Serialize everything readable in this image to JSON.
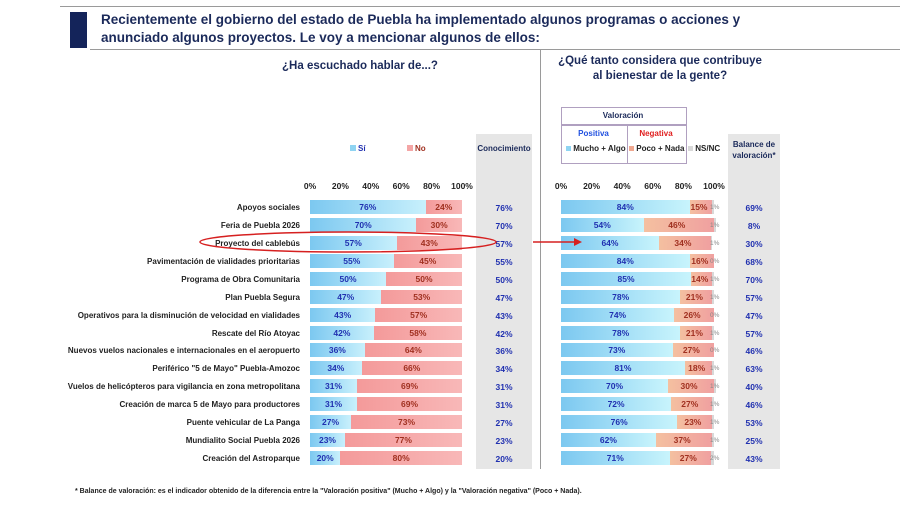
{
  "header": {
    "title": "Recientemente el gobierno del estado de Puebla ha implementado algunos programas o acciones y anunciado algunos proyectos. Le voy a mencionar algunos de ellos:"
  },
  "left": {
    "question": "¿Ha escuchado hablar de...?",
    "legend_si": "Sí",
    "legend_no": "No",
    "conocimiento_header": "Conocimiento"
  },
  "right": {
    "question_line1": "¿Qué tanto considera que contribuye",
    "question_line2": "al bienestar de la gente?",
    "valoracion": "Valoración",
    "positiva": "Positiva",
    "negativa": "Negativa",
    "mucho_algo": "Mucho + Algo",
    "poco_nada": "Poco + Nada",
    "nsnc": "NS/NC",
    "balance_header": "Balance de valoración*"
  },
  "colors": {
    "si": "#8fd4f2",
    "no": "#f4a6a6",
    "positive": "#8fd4f2",
    "negative": "#f0a890",
    "nsnc": "#d8d8d8",
    "highlight": "#d62020",
    "navy": "#14245a"
  },
  "footnote": "* Balance de valoración: es el indicador obtenido de la diferencia entre la \"Valoración positiva\" (Mucho + Algo) y la \"Valoración negativa\" (Poco + Nada).",
  "highlighted": "Proyecto del cablebús",
  "chart_data": [
    {
      "type": "bar",
      "stacked": true,
      "orientation": "horizontal",
      "title": "¿Ha escuchado hablar de...?",
      "xlim": [
        0,
        100
      ],
      "ticks": [
        "0%",
        "20%",
        "40%",
        "60%",
        "80%",
        "100%"
      ],
      "categories": [
        "Apoyos sociales",
        "Feria de Puebla 2026",
        "Proyecto del cablebús",
        "Pavimentación de vialidades prioritarias",
        "Programa de Obra Comunitaria",
        "Plan Puebla Segura",
        "Operativos para la disminución de velocidad en vialidades",
        "Rescate del Río Atoyac",
        "Nuevos vuelos nacionales e internacionales en el aeropuerto",
        "Periférico \"5 de Mayo\" Puebla-Amozoc",
        "Vuelos de helicópteros para vigilancia en zona metropolitana",
        "Creación de marca 5 de Mayo para productores",
        "Puente vehicular de La Panga",
        "Mundialito Social Puebla 2026",
        "Creación del Astroparque"
      ],
      "series": [
        {
          "name": "Sí",
          "values": [
            76,
            70,
            57,
            55,
            50,
            47,
            43,
            42,
            36,
            34,
            31,
            31,
            27,
            23,
            20
          ]
        },
        {
          "name": "No",
          "values": [
            24,
            30,
            43,
            45,
            50,
            53,
            57,
            58,
            64,
            66,
            69,
            69,
            73,
            77,
            80
          ]
        }
      ],
      "conocimiento": [
        76,
        70,
        57,
        55,
        50,
        47,
        43,
        42,
        36,
        34,
        31,
        31,
        27,
        23,
        20
      ]
    },
    {
      "type": "bar",
      "stacked": true,
      "orientation": "horizontal",
      "title": "¿Qué tanto considera que contribuye al bienestar de la gente?",
      "xlim": [
        0,
        100
      ],
      "ticks": [
        "0%",
        "20%",
        "40%",
        "60%",
        "80%",
        "100%"
      ],
      "series": [
        {
          "name": "Mucho + Algo",
          "values": [
            84,
            54,
            64,
            84,
            85,
            78,
            74,
            78,
            73,
            81,
            70,
            72,
            76,
            62,
            71
          ]
        },
        {
          "name": "Poco + Nada",
          "values": [
            15,
            46,
            34,
            16,
            14,
            21,
            26,
            21,
            27,
            18,
            30,
            27,
            23,
            37,
            27
          ]
        },
        {
          "name": "NS/NC",
          "values": [
            1,
            1,
            1,
            0,
            1,
            1,
            0,
            1,
            0,
            1,
            1,
            1,
            1,
            1,
            2
          ]
        }
      ],
      "balance": [
        69,
        8,
        30,
        68,
        70,
        57,
        47,
        57,
        46,
        63,
        40,
        46,
        53,
        25,
        43
      ]
    }
  ]
}
